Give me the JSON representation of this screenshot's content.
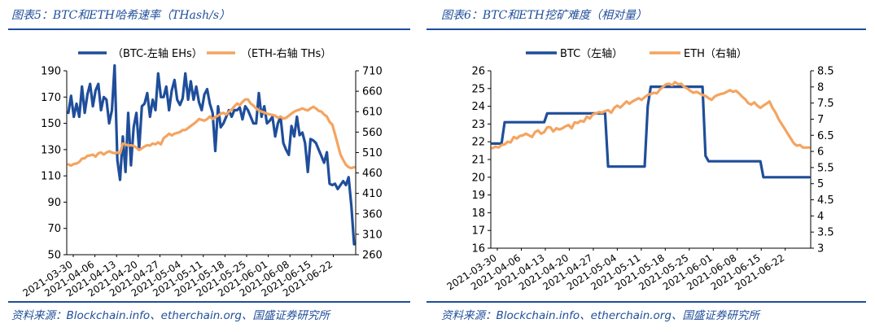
{
  "figures": [
    {
      "title": "图表5：BTC和ETH哈希速率（THash/s）",
      "source": "资料来源：Blockchain.info、etherchain.org、国盛证券研究所"
    },
    {
      "title": "图表6：BTC和ETH挖矿难度（相对量）",
      "source": "资料来源：Blockchain.info、etherchain.org、国盛证券研究所"
    }
  ],
  "chart_data": [
    {
      "type": "line",
      "title": "BTC和ETH哈希速率（THash/s）",
      "x_labels": [
        "2021-03-30",
        "2021-04-06",
        "2021-04-13",
        "2021-04-20",
        "2021-04-27",
        "2021-05-04",
        "2021-05-11",
        "2021-05-18",
        "2021-05-25",
        "2021-06-01",
        "2021-06-08",
        "2021-06-15",
        "2021-06-22"
      ],
      "ylim_left": [
        50,
        190
      ],
      "yticks_left": [
        50,
        70,
        90,
        110,
        130,
        150,
        170,
        190
      ],
      "ylim_right": [
        260,
        710
      ],
      "yticks_right": [
        260,
        310,
        360,
        410,
        460,
        510,
        560,
        610,
        660,
        710
      ],
      "legend_position": "top",
      "series": [
        {
          "name": "（BTC-左轴 EHs）",
          "axis": "left",
          "color": "#1F4E9A",
          "values": [
            158,
            171,
            155,
            165,
            155,
            178,
            158,
            172,
            180,
            163,
            175,
            180,
            160,
            170,
            168,
            150,
            160,
            194,
            122,
            107,
            140,
            113,
            158,
            118,
            147,
            158,
            130,
            163,
            165,
            173,
            155,
            168,
            160,
            188,
            170,
            170,
            178,
            160,
            175,
            183,
            168,
            164,
            169,
            188,
            168,
            182,
            168,
            178,
            166,
            160,
            172,
            176,
            165,
            158,
            129,
            163,
            147,
            150,
            155,
            160,
            155,
            160,
            160,
            162,
            153,
            163,
            160,
            155,
            150,
            150,
            173,
            155,
            163,
            150,
            152,
            155,
            140,
            150,
            155,
            135,
            130,
            126,
            148,
            140,
            155,
            141,
            143,
            135,
            113,
            138,
            137,
            135,
            130,
            125,
            120,
            128,
            104,
            103,
            104,
            100,
            103,
            106,
            103,
            109,
            87,
            58
          ]
        },
        {
          "name": "（ETH-右轴 THs）",
          "axis": "right",
          "color": "#F4A460",
          "values": [
            481,
            478,
            482,
            483,
            487,
            495,
            496,
            502,
            503,
            505,
            500,
            508,
            510,
            505,
            510,
            513,
            510,
            508,
            510,
            508,
            532,
            530,
            527,
            528,
            526,
            522,
            516,
            520,
            525,
            528,
            527,
            532,
            530,
            535,
            530,
            545,
            550,
            556,
            552,
            556,
            558,
            560,
            565,
            565,
            570,
            575,
            580,
            585,
            592,
            590,
            588,
            592,
            598,
            592,
            597,
            600,
            605,
            607,
            603,
            610,
            615,
            623,
            630,
            626,
            634,
            640,
            640,
            630,
            625,
            618,
            613,
            610,
            608,
            605,
            603,
            602,
            600,
            595,
            598,
            593,
            595,
            600,
            605,
            610,
            613,
            615,
            618,
            615,
            613,
            618,
            622,
            618,
            612,
            610,
            603,
            598,
            585,
            578,
            555,
            530,
            505,
            492,
            480,
            474,
            472,
            474
          ]
        }
      ]
    },
    {
      "type": "line",
      "title": "BTC和ETH挖矿难度（相对量）",
      "x_labels": [
        "2021-03-30",
        "2021-04-06",
        "2021-04-13",
        "2021-04-20",
        "2021-04-27",
        "2021-05-04",
        "2021-05-11",
        "2021-05-18",
        "2021-05-25",
        "2021-06-01",
        "2021-06-08",
        "2021-06-15",
        "2021-06-22"
      ],
      "ylim_left": [
        16,
        26
      ],
      "yticks_left": [
        16,
        17,
        18,
        19,
        20,
        21,
        22,
        23,
        24,
        25,
        26
      ],
      "ylim_right": [
        3,
        8.5
      ],
      "yticks_right": [
        3,
        3.5,
        4,
        4.5,
        5,
        5.5,
        6,
        6.5,
        7,
        7.5,
        8,
        8.5
      ],
      "legend_position": "top",
      "series": [
        {
          "name": "BTC（左轴）",
          "axis": "left",
          "color": "#1F4E9A",
          "values": [
            21.9,
            21.9,
            21.9,
            21.9,
            23.1,
            23.1,
            23.1,
            23.1,
            23.1,
            23.1,
            23.1,
            23.1,
            23.1,
            23.1,
            23.1,
            23.1,
            23.1,
            23.1,
            23.6,
            23.6,
            23.6,
            23.6,
            23.6,
            23.6,
            23.6,
            23.6,
            23.6,
            23.6,
            23.6,
            23.6,
            23.6,
            23.6,
            23.6,
            23.6,
            23.6,
            23.6,
            23.6,
            23.6,
            20.6,
            20.6,
            20.6,
            20.6,
            20.6,
            20.6,
            20.6,
            20.6,
            20.6,
            20.6,
            20.6,
            20.6,
            20.6,
            24.0,
            25.1,
            25.1,
            25.1,
            25.1,
            25.1,
            25.1,
            25.1,
            25.1,
            25.1,
            25.1,
            25.1,
            25.1,
            25.1,
            25.1,
            25.1,
            25.1,
            25.1,
            25.1,
            21.2,
            20.9,
            20.9,
            20.9,
            20.9,
            20.9,
            20.9,
            20.9,
            20.9,
            20.9,
            20.9,
            20.9,
            20.9,
            20.9,
            20.9,
            20.9,
            20.9,
            20.9,
            20.9,
            20.0,
            20.0,
            20.0,
            20.0,
            20.0,
            20.0,
            20.0,
            20.0,
            20.0,
            20.0,
            20.0,
            20.0,
            20.0,
            20.0,
            20.0,
            20.0
          ]
        },
        {
          "name": "ETH（右轴）",
          "axis": "right",
          "color": "#F4A460",
          "values": [
            6.1,
            6.15,
            6.12,
            6.2,
            6.22,
            6.3,
            6.28,
            6.45,
            6.4,
            6.48,
            6.5,
            6.55,
            6.5,
            6.45,
            6.6,
            6.65,
            6.55,
            6.6,
            6.75,
            6.75,
            6.62,
            6.72,
            6.68,
            6.72,
            6.78,
            6.82,
            6.72,
            6.9,
            6.88,
            6.95,
            6.92,
            7.08,
            7.02,
            7.15,
            7.18,
            7.22,
            7.2,
            7.25,
            7.28,
            7.2,
            7.35,
            7.42,
            7.36,
            7.45,
            7.55,
            7.48,
            7.55,
            7.6,
            7.65,
            7.6,
            7.68,
            7.75,
            7.78,
            7.82,
            7.8,
            7.92,
            8.0,
            8.08,
            8.1,
            8.05,
            8.15,
            8.08,
            8.1,
            8.0,
            7.95,
            7.88,
            7.82,
            7.85,
            7.8,
            7.75,
            7.72,
            7.65,
            7.6,
            7.7,
            7.75,
            7.78,
            7.8,
            7.85,
            7.9,
            7.85,
            7.88,
            7.8,
            7.7,
            7.62,
            7.5,
            7.45,
            7.52,
            7.42,
            7.35,
            7.42,
            7.48,
            7.55,
            7.35,
            7.2,
            7.0,
            6.85,
            6.7,
            6.55,
            6.4,
            6.25,
            6.18,
            6.2,
            6.12,
            6.12,
            6.12
          ]
        }
      ]
    }
  ]
}
